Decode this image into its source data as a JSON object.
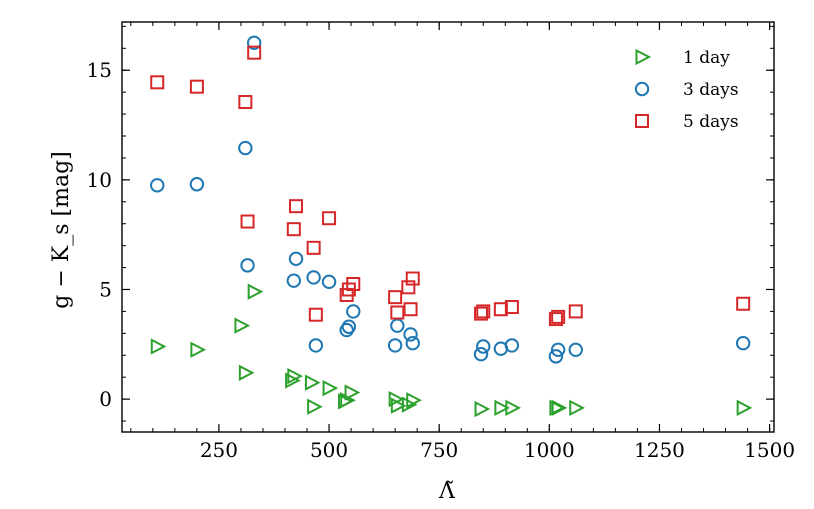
{
  "chart_data": {
    "type": "scatter",
    "xlabel": "Λ̃",
    "ylabel": "g − K_s [mag]",
    "xlim": [
      30,
      1510
    ],
    "ylim": [
      -1.5,
      17.2
    ],
    "xticks": [
      250,
      500,
      750,
      1000,
      1250,
      1500
    ],
    "yticks": [
      0,
      5,
      10,
      15
    ],
    "xtick_labels": [
      "250",
      "500",
      "750",
      "1000",
      "1250",
      "1500"
    ],
    "ytick_labels": [
      "0",
      "5",
      "10",
      "15"
    ],
    "grid": false,
    "legend_position": "top-right",
    "series": [
      {
        "name": "1 day",
        "marker": "triangle-right",
        "color": "#2ca02c",
        "x": [
          110,
          200,
          300,
          310,
          330,
          415,
          420,
          460,
          465,
          500,
          535,
          540,
          550,
          650,
          655,
          680,
          690,
          845,
          890,
          915,
          1015,
          1020,
          1060,
          1440
        ],
        "y": [
          2.4,
          2.25,
          3.35,
          1.2,
          4.9,
          0.85,
          1.05,
          0.75,
          -0.35,
          0.5,
          -0.1,
          -0.05,
          0.3,
          0.0,
          -0.3,
          -0.25,
          -0.05,
          -0.45,
          -0.4,
          -0.4,
          -0.4,
          -0.4,
          -0.4,
          -0.4
        ]
      },
      {
        "name": "3 days",
        "marker": "circle",
        "color": "#1f77b4",
        "x": [
          110,
          200,
          310,
          315,
          330,
          420,
          425,
          465,
          470,
          500,
          540,
          545,
          555,
          650,
          655,
          685,
          690,
          845,
          850,
          890,
          915,
          1015,
          1020,
          1060,
          1440
        ],
        "y": [
          9.75,
          9.8,
          11.45,
          6.1,
          16.25,
          5.4,
          6.4,
          5.55,
          2.45,
          5.35,
          3.15,
          3.3,
          4.0,
          2.45,
          3.35,
          2.95,
          2.55,
          2.05,
          2.4,
          2.3,
          2.45,
          1.95,
          2.25,
          2.25,
          2.55
        ]
      },
      {
        "name": "5 days",
        "marker": "square",
        "color": "#d62728",
        "x": [
          110,
          200,
          310,
          315,
          330,
          420,
          425,
          465,
          470,
          500,
          540,
          545,
          555,
          650,
          655,
          680,
          685,
          690,
          845,
          850,
          890,
          915,
          1015,
          1020,
          1060,
          1440
        ],
        "y": [
          14.45,
          14.25,
          13.55,
          8.1,
          15.8,
          7.75,
          8.8,
          6.9,
          3.85,
          8.25,
          4.75,
          5.0,
          5.25,
          4.65,
          3.95,
          5.1,
          4.1,
          5.5,
          3.9,
          4.0,
          4.1,
          4.2,
          3.65,
          3.75,
          4.0,
          4.35
        ]
      }
    ]
  }
}
